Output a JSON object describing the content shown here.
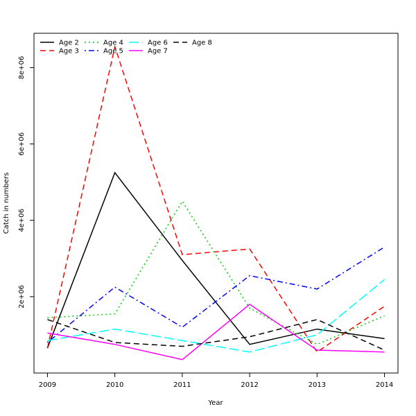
{
  "chart_data": {
    "type": "line",
    "title": "",
    "xlabel": "Year",
    "ylabel": "Catch in numbers",
    "x": [
      2009,
      2010,
      2011,
      2012,
      2013,
      2014
    ],
    "x_ticks": [
      "2009",
      "2010",
      "2011",
      "2012",
      "2013",
      "2014"
    ],
    "xlim": [
      2008.8,
      2014.2
    ],
    "ylim": [
      0,
      8900000
    ],
    "y_ticks": [
      2000000,
      4000000,
      6000000,
      8000000
    ],
    "y_tick_labels": [
      "2e+06",
      "4e+06",
      "6e+06",
      "8e+06"
    ],
    "grid": false,
    "legend_position": "top-left",
    "series": [
      {
        "name": "Age 2",
        "color": "#000000",
        "dash": "solid",
        "values": [
          650000,
          5250000,
          2950000,
          750000,
          1150000,
          900000
        ]
      },
      {
        "name": "Age 3",
        "color": "#ff0000",
        "dash": "dashed",
        "values": [
          650000,
          8550000,
          3100000,
          3250000,
          550000,
          1750000
        ]
      },
      {
        "name": "Age 4",
        "color": "#00cd00",
        "dash": "dotted",
        "values": [
          1450000,
          1550000,
          4500000,
          1700000,
          750000,
          1500000
        ]
      },
      {
        "name": "Age 5",
        "color": "#0000ff",
        "dash": "dotdash",
        "values": [
          800000,
          2250000,
          1200000,
          2550000,
          2200000,
          3300000
        ]
      },
      {
        "name": "Age 6",
        "color": "#00ffff",
        "dash": "longdash",
        "values": [
          850000,
          1150000,
          850000,
          550000,
          1000000,
          2450000
        ]
      },
      {
        "name": "Age 7",
        "color": "#ff00ff",
        "dash": "solid",
        "values": [
          1050000,
          750000,
          350000,
          1800000,
          600000,
          550000
        ]
      },
      {
        "name": "Age 8",
        "color": "#000000",
        "dash": "dashed",
        "values": [
          1400000,
          800000,
          700000,
          950000,
          1400000,
          600000
        ]
      }
    ]
  }
}
